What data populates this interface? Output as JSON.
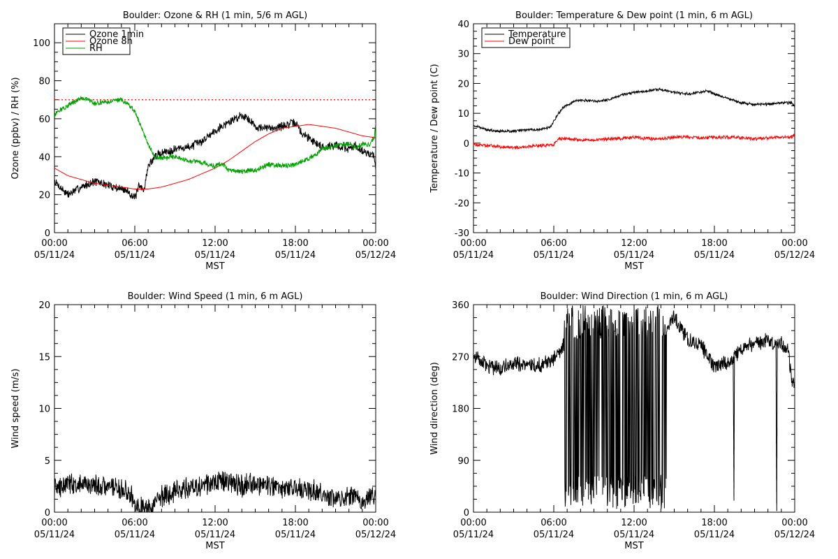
{
  "time_ticks": [
    "00:00",
    "06:00",
    "12:00",
    "18:00",
    "00:00"
  ],
  "date_ticks": [
    "05/11/24",
    "05/11/24",
    "05/11/24",
    "05/11/24",
    "05/12/24"
  ],
  "x_axis_label": "MST",
  "chart_data": [
    {
      "type": "line",
      "title": "Boulder: Ozone & RH (1 min, 5/6 m AGL)",
      "ylabel": "Ozone (ppbv) / RH (%)",
      "xlabel": "MST",
      "x_unit": "hours since 00:00 05/11/24 MST",
      "xlim": [
        0,
        24
      ],
      "ylim": [
        0,
        110
      ],
      "yticks": [
        0,
        20,
        40,
        60,
        80,
        100
      ],
      "legend_position": "top-left",
      "reference_lines": [
        {
          "y": 70,
          "style": "dotted",
          "color": "#ff0000"
        }
      ],
      "series": [
        {
          "name": "Ozone 1min",
          "color": "#000000",
          "noise": 2.0,
          "x": [
            0,
            1,
            2,
            3,
            4,
            5,
            5.5,
            6,
            6.3,
            6.7,
            7.0,
            7.5,
            8,
            9,
            10,
            11,
            12,
            13,
            14,
            14.5,
            15,
            15.5,
            16,
            17,
            18,
            18.5,
            19,
            20,
            21,
            22,
            22.5,
            23,
            23.5,
            23.9,
            24
          ],
          "y": [
            27,
            20,
            24,
            27,
            25,
            23,
            22,
            18,
            24,
            23,
            35,
            40,
            42,
            44,
            45,
            48,
            54,
            58,
            62,
            60,
            56,
            55,
            55,
            56,
            58,
            52,
            50,
            45,
            46,
            44,
            46,
            43,
            42,
            40,
            35
          ]
        },
        {
          "name": "Ozone 8h",
          "color": "#ff0000",
          "noise": 0,
          "x": [
            0,
            1,
            2,
            3,
            4,
            5,
            6,
            7,
            8,
            9,
            10,
            11,
            12,
            13,
            14,
            15,
            16,
            17,
            18,
            19,
            20,
            21,
            22,
            23,
            24
          ],
          "y": [
            34,
            30,
            28,
            26,
            25,
            24,
            23,
            23,
            24,
            26,
            28,
            31,
            34,
            38,
            43,
            48,
            52,
            55,
            56,
            57,
            56,
            55,
            53,
            51,
            50
          ]
        },
        {
          "name": "RH",
          "color": "#00a000",
          "noise": 1.2,
          "x": [
            0,
            0.5,
            1,
            1.5,
            2,
            2.5,
            3,
            4,
            5,
            5.5,
            6,
            6.5,
            7,
            7.5,
            8,
            9,
            10,
            11,
            12,
            12.5,
            13,
            14,
            15,
            16,
            17,
            18,
            19,
            19.5,
            20,
            21,
            22,
            22.5,
            23,
            23.5,
            23.9,
            24
          ],
          "y": [
            62,
            65,
            67,
            69,
            71,
            70,
            68,
            69,
            70,
            68,
            64,
            55,
            46,
            40,
            39,
            40,
            38,
            37,
            35,
            37,
            33,
            32,
            33,
            36,
            35,
            36,
            39,
            41,
            44,
            46,
            47,
            45,
            47,
            46,
            50,
            58
          ]
        }
      ]
    },
    {
      "type": "line",
      "title": "Boulder: Temperature & Dew point (1 min, 6 m AGL)",
      "ylabel": "Temperature / Dew point (C)",
      "xlabel": "MST",
      "x_unit": "hours since 00:00 05/11/24 MST",
      "xlim": [
        0,
        24
      ],
      "ylim": [
        -30,
        40
      ],
      "yticks": [
        -30,
        -20,
        -10,
        0,
        10,
        20,
        30,
        40
      ],
      "legend_position": "top-left",
      "series": [
        {
          "name": "Temperature",
          "color": "#000000",
          "noise": 0.4,
          "x": [
            0,
            1,
            2,
            3,
            4,
            5,
            5.8,
            6.2,
            6.7,
            7.5,
            8,
            9,
            10,
            11,
            12,
            13,
            13.5,
            14,
            15,
            16,
            17,
            17.5,
            18,
            19,
            20,
            21,
            22,
            23,
            23.8,
            24
          ],
          "y": [
            6,
            4.5,
            4,
            4,
            4.5,
            4.5,
            5.5,
            9,
            12,
            14,
            14.5,
            14,
            14.5,
            16,
            17,
            17.5,
            18,
            18,
            17,
            16.5,
            17,
            17.5,
            16.5,
            15,
            13.5,
            13,
            13,
            13.5,
            13.5,
            12
          ]
        },
        {
          "name": "Dew point",
          "color": "#ff0000",
          "noise": 0.5,
          "x": [
            0,
            1,
            2,
            3,
            4,
            5,
            6,
            6.3,
            7,
            8,
            9,
            10,
            11,
            12,
            13,
            14,
            15,
            16,
            17,
            18,
            19,
            20,
            21,
            22,
            23,
            23.8,
            24
          ],
          "y": [
            -0.5,
            -0.8,
            -1.2,
            -1.5,
            -1.2,
            -0.8,
            -0.5,
            1.5,
            1.5,
            1,
            1,
            1.5,
            1.5,
            2,
            1.5,
            1.5,
            2,
            2,
            1.8,
            2,
            2,
            1.8,
            1.5,
            1.8,
            2,
            2,
            3
          ]
        }
      ]
    },
    {
      "type": "line",
      "title": "Boulder: Wind Speed (1 min, 6 m AGL)",
      "ylabel": "Wind speed (m/s)",
      "xlabel": "MST",
      "x_unit": "hours since 00:00 05/11/24 MST",
      "xlim": [
        0,
        24
      ],
      "ylim": [
        0,
        20
      ],
      "yticks": [
        0,
        5,
        10,
        15,
        20
      ],
      "series": [
        {
          "name": "",
          "color": "#000000",
          "noise": 0.9,
          "x": [
            0,
            1,
            2,
            3,
            4,
            5,
            5.8,
            6.3,
            7,
            7.5,
            8,
            9,
            10,
            11,
            12,
            13,
            14,
            15,
            16,
            17,
            18,
            19,
            20,
            21,
            22,
            23,
            24
          ],
          "y": [
            2.2,
            2.5,
            2.8,
            2.6,
            2.5,
            2.3,
            1.5,
            0.6,
            0.4,
            0.8,
            1.5,
            2,
            2.3,
            2.5,
            3,
            3,
            2.5,
            2.8,
            2.5,
            2.2,
            2.3,
            2.2,
            1.8,
            1.3,
            1.5,
            1.3,
            1.5
          ]
        }
      ]
    },
    {
      "type": "line",
      "title": "Boulder: Wind Direction (1 min, 6 m AGL)",
      "ylabel": "Wind direction (deg)",
      "xlabel": "MST",
      "x_unit": "hours since 00:00 05/11/24 MST",
      "xlim": [
        0,
        24
      ],
      "ylim": [
        0,
        360
      ],
      "yticks": [
        0,
        90,
        180,
        270,
        360
      ],
      "series": [
        {
          "name": "",
          "color": "#000000",
          "noise": 12,
          "wrap_spikes": {
            "x_range": [
              6.8,
              14.4
            ],
            "count": 48
          },
          "x": [
            0,
            1,
            2,
            3,
            4,
            5,
            6,
            6.5,
            7,
            14.5,
            15,
            16,
            17,
            18,
            19,
            19.5,
            20,
            21,
            22,
            22.5,
            23,
            23.5,
            23.8,
            24
          ],
          "y": [
            270,
            255,
            250,
            260,
            255,
            255,
            265,
            280,
            300,
            320,
            340,
            300,
            290,
            250,
            260,
            270,
            285,
            290,
            300,
            290,
            295,
            280,
            230,
            220
          ]
        },
        {
          "name": "",
          "color": "#000000",
          "noise": 0,
          "x": [
            19.4,
            19.43,
            19.46,
            19.5
          ],
          "y": [
            270,
            160,
            20,
            270
          ]
        },
        {
          "name": "",
          "color": "#000000",
          "noise": 0,
          "x": [
            22.6,
            22.63,
            22.66,
            22.7
          ],
          "y": [
            290,
            120,
            2,
            300
          ]
        }
      ]
    }
  ]
}
